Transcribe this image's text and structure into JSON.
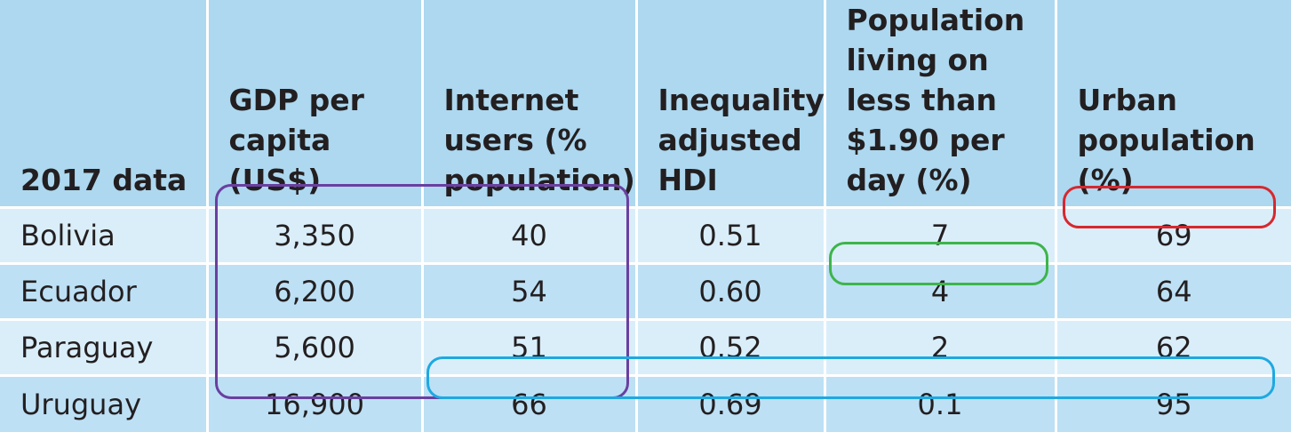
{
  "table": {
    "headers": [
      "2017 data",
      "GDP per capita (US$)",
      "Internet users (% population)",
      "Inequality adjusted HDI",
      "Population living on less than $1.90 per day (%)",
      "Urban population (%)"
    ],
    "rows": [
      [
        "Bolivia",
        "3,350",
        "40",
        "0.51",
        "7",
        "69"
      ],
      [
        "Ecuador",
        "6,200",
        "54",
        "0.60",
        "4",
        "64"
      ],
      [
        "Paraguay",
        "5,600",
        "51",
        "0.52",
        "2",
        "62"
      ],
      [
        "Uruguay",
        "16,900",
        "66",
        "0.69",
        "0.1",
        "95"
      ]
    ]
  },
  "highlights": {
    "purple": "#6b3fa0",
    "red": "#d7282f",
    "green": "#3db54a",
    "blue": "#1ea9e1"
  }
}
